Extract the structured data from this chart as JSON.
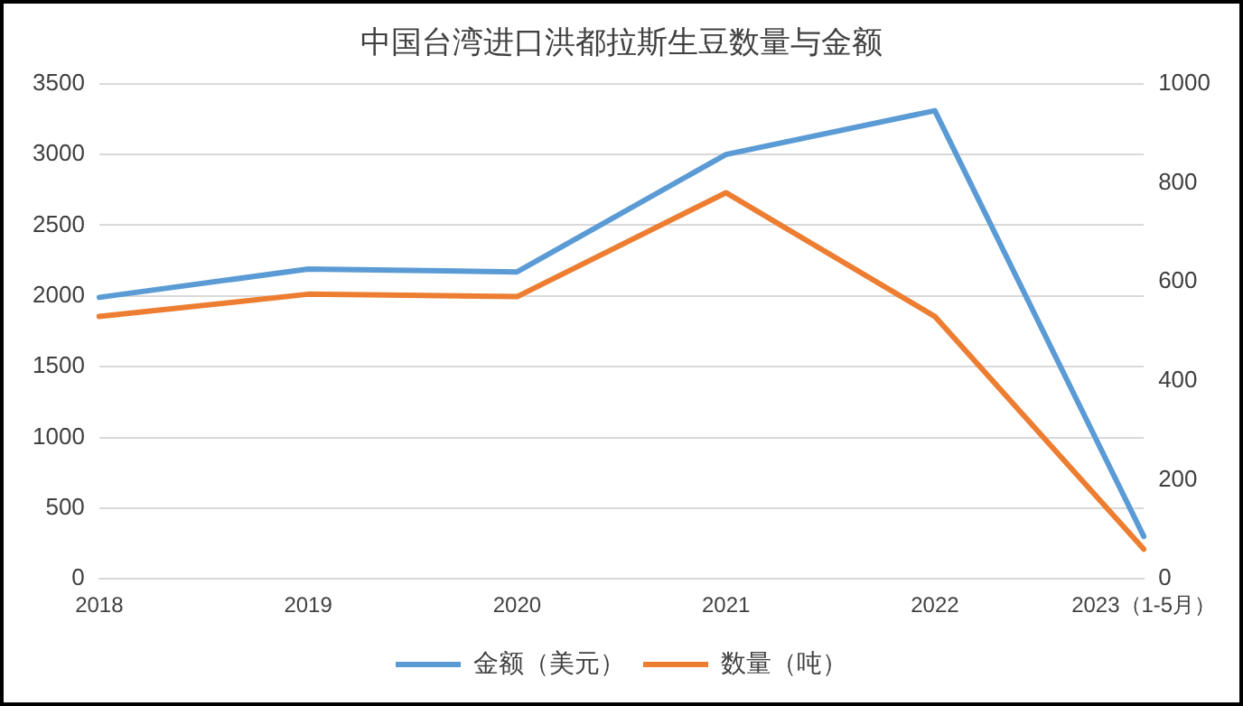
{
  "chart_data": {
    "type": "line",
    "title": "中国台湾进口洪都拉斯生豆数量与金额",
    "categories": [
      "2018",
      "2019",
      "2020",
      "2021",
      "2022",
      "2023（1-5月）"
    ],
    "series": [
      {
        "name": "金额（美元）",
        "color": "#5b9bd5",
        "values": [
          1990,
          2190,
          2170,
          3000,
          3310,
          300
        ]
      },
      {
        "name": "数量（吨）",
        "color": "#ed7d31",
        "values": [
          530,
          575,
          570,
          780,
          530,
          60
        ],
        "axis": "y2"
      }
    ],
    "ylim": [
      0,
      3500
    ],
    "yticks": [
      0,
      500,
      1000,
      1500,
      2000,
      2500,
      3000,
      3500
    ],
    "y2lim": [
      0,
      1000
    ],
    "y2ticks": [
      0,
      200,
      400,
      600,
      800,
      1000
    ],
    "grid": "y",
    "legend": "bottom",
    "marker": "none",
    "line_style": "solid"
  }
}
